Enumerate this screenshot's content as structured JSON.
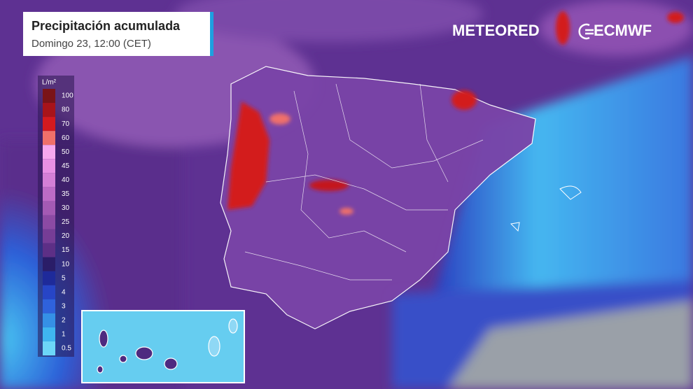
{
  "header": {
    "title": "Precipitación acumulada",
    "subtitle": "Domingo 23, 12:00 (CET)"
  },
  "logos": {
    "brand": "METEORED",
    "source": "ECMWF"
  },
  "legend": {
    "unit": "L/m²",
    "labels": [
      "100",
      "80",
      "70",
      "60",
      "50",
      "45",
      "40",
      "35",
      "30",
      "25",
      "20",
      "15",
      "10",
      "5",
      "4",
      "3",
      "2",
      "1",
      "0.5"
    ],
    "colors": [
      "#7a1418",
      "#a8141a",
      "#d31a1f",
      "#f0706a",
      "#f7a8ee",
      "#e890e4",
      "#d47fd6",
      "#bd6bc6",
      "#a45ab4",
      "#8c4aa4",
      "#763d96",
      "#5d2f86",
      "#2a1d68",
      "#1e2a9a",
      "#2745c6",
      "#2f62dc",
      "#3590e6",
      "#3fb6f0",
      "#6cd6f8"
    ]
  }
}
